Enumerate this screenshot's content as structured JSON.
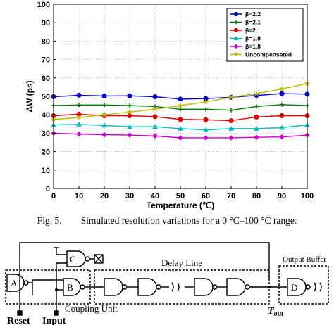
{
  "chart_data": {
    "type": "line",
    "xlabel": "Temperature (℃)",
    "ylabel": "ΔW (ps)",
    "xlim": [
      0,
      100
    ],
    "ylim": [
      0,
      100
    ],
    "x_ticks": [
      0,
      10,
      20,
      30,
      40,
      50,
      60,
      70,
      80,
      90,
      100
    ],
    "y_ticks": [
      0,
      10,
      20,
      30,
      40,
      50,
      60,
      70,
      80,
      90,
      100
    ],
    "x": [
      0,
      10,
      20,
      30,
      40,
      50,
      60,
      70,
      80,
      90,
      100
    ],
    "grid": true,
    "legend_position": "top-right",
    "series": [
      {
        "name": "β=2.2",
        "color": "#0000cc",
        "marker": "circle",
        "values": [
          49.8,
          50.6,
          50.2,
          50.3,
          49.8,
          48.5,
          48.8,
          49.5,
          50.5,
          51.5,
          51.2
        ]
      },
      {
        "name": "β=2.1",
        "color": "#007700",
        "marker": "plus",
        "values": [
          45.0,
          45.3,
          45.3,
          45.0,
          44.5,
          43.0,
          43.0,
          42.5,
          44.5,
          45.5,
          45.0
        ]
      },
      {
        "name": "β=2",
        "color": "#dd0000",
        "marker": "circle",
        "values": [
          39.5,
          40.3,
          39.5,
          39.5,
          39.0,
          37.5,
          37.3,
          36.8,
          38.8,
          39.5,
          39.5
        ]
      },
      {
        "name": "β=1.9",
        "color": "#00bbbb",
        "marker": "triangle",
        "values": [
          34.5,
          34.8,
          34.2,
          33.5,
          33.5,
          32.5,
          31.8,
          32.5,
          32.5,
          33.0,
          34.5
        ]
      },
      {
        "name": "β=1.8",
        "color": "#cc00cc",
        "marker": "diamond",
        "values": [
          30.0,
          29.5,
          29.2,
          29.0,
          28.5,
          27.5,
          27.5,
          27.5,
          27.8,
          28.0,
          29.0
        ]
      },
      {
        "name": "Uncompensated",
        "color": "#bbbb00",
        "marker": "star",
        "values": [
          37.5,
          38.5,
          40.0,
          41.5,
          43.0,
          45.0,
          47.0,
          49.5,
          51.5,
          54.0,
          57.0
        ]
      }
    ]
  },
  "caption": {
    "text": "Fig. 5.  Simulated resolution variations for a 0 °C–100 °C range."
  },
  "circuit": {
    "gate_a": "A",
    "gate_b": "B",
    "gate_c": "C",
    "gate_d": "D",
    "delay_line_label": "Delay Line",
    "output_buffer_label": "Output Buffer",
    "coupling_unit_label": "Coupling Unit",
    "reset_label": "Reset",
    "input_label": "Input",
    "tout_label": "T",
    "tout_sub": "out"
  }
}
